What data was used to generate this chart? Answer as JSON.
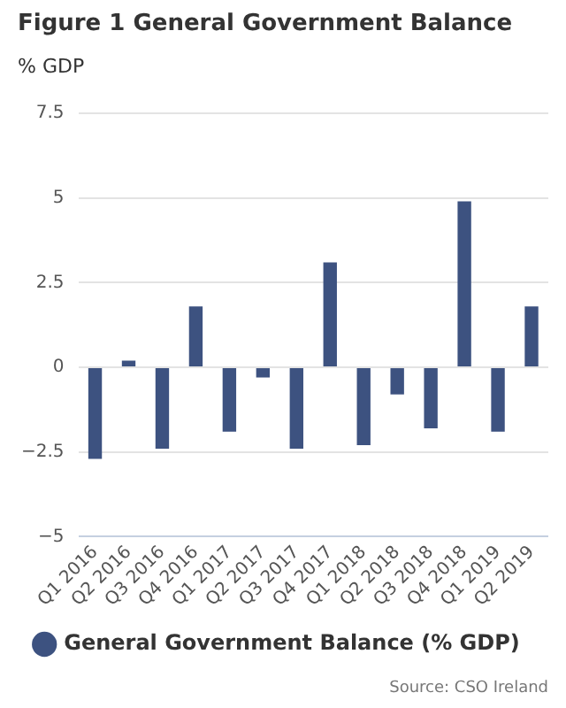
{
  "chart_data": {
    "type": "bar",
    "title": "Figure 1 General Government Balance",
    "ylabel": "% GDP",
    "categories": [
      "Q1 2016",
      "Q2 2016",
      "Q3 2016",
      "Q4 2016",
      "Q1 2017",
      "Q2 2017",
      "Q3 2017",
      "Q4 2017",
      "Q1 2018",
      "Q2 2018",
      "Q3 2018",
      "Q4 2018",
      "Q1 2019",
      "Q2 2019"
    ],
    "series": [
      {
        "name": "General Government Balance (% GDP)",
        "color": "#3d5280",
        "values": [
          -2.7,
          0.2,
          -2.4,
          1.8,
          -1.9,
          -0.3,
          -2.4,
          3.1,
          -2.3,
          -0.8,
          -1.8,
          4.9,
          -1.9,
          1.8
        ]
      }
    ],
    "ylim": [
      -5,
      7.5
    ],
    "yticks": [
      {
        "value": -5,
        "label": "−5"
      },
      {
        "value": -2.5,
        "label": "−2.5"
      },
      0,
      2.5,
      5,
      7.5
    ],
    "grid": "y",
    "legend": "bottom",
    "annotations": [
      "Source: CSO Ireland"
    ]
  }
}
